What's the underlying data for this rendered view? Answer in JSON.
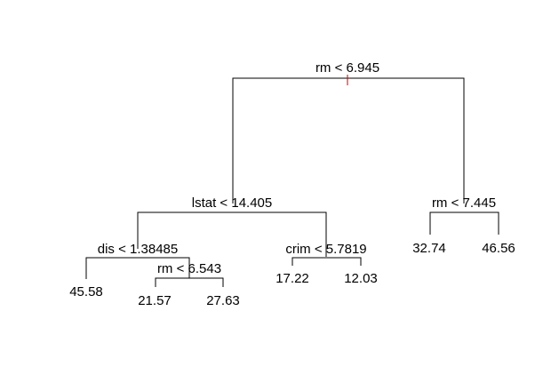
{
  "tree": {
    "nodes": [
      {
        "id": "root",
        "split": "rm < 6.945",
        "left": "n_lstat",
        "right": "n_rm7445"
      },
      {
        "id": "n_lstat",
        "split": "lstat < 14.405",
        "left": "n_dis",
        "right": "n_crim"
      },
      {
        "id": "n_rm7445",
        "split": "rm < 7.445",
        "left": "leaf_3274",
        "right": "leaf_4656"
      },
      {
        "id": "n_dis",
        "split": "dis < 1.38485",
        "left": "leaf_4558",
        "right": "n_rm6543"
      },
      {
        "id": "n_crim",
        "split": "crim < 5.7819",
        "left": "leaf_1722",
        "right": "leaf_1203"
      },
      {
        "id": "n_rm6543",
        "split": "rm < 6.543",
        "left": "leaf_2157",
        "right": "leaf_2763"
      }
    ],
    "leaves": [
      {
        "id": "leaf_4558",
        "value": "45.58"
      },
      {
        "id": "leaf_2157",
        "value": "21.57"
      },
      {
        "id": "leaf_2763",
        "value": "27.63"
      },
      {
        "id": "leaf_1722",
        "value": "17.22"
      },
      {
        "id": "leaf_1203",
        "value": "12.03"
      },
      {
        "id": "leaf_3274",
        "value": "32.74"
      },
      {
        "id": "leaf_4656",
        "value": "46.56"
      }
    ]
  }
}
